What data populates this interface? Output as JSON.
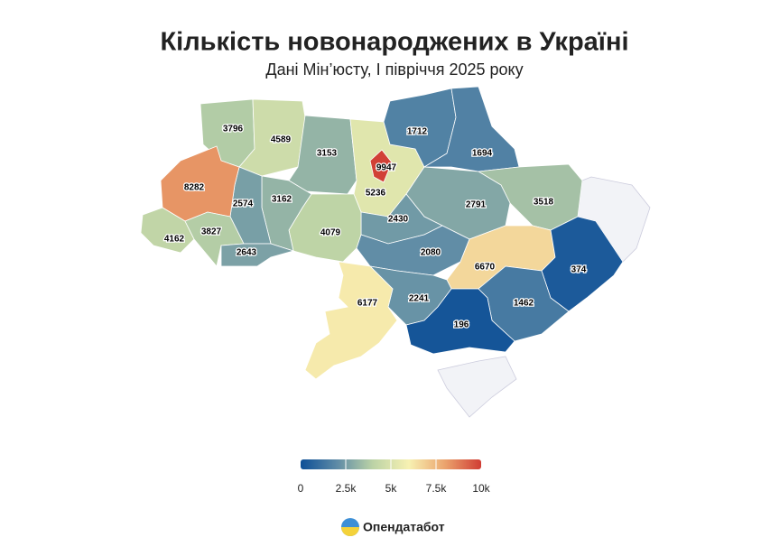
{
  "header": {
    "title": "Кількість новонароджених в Україні",
    "subtitle": "Дані Мін’юсту, І півріччя 2025 року"
  },
  "map": {
    "values": [
      3796,
      4589,
      3153,
      9947,
      5236,
      1712,
      1694,
      3518,
      2791,
      2430,
      4079,
      3162,
      2574,
      8282,
      4162,
      3827,
      2643,
      2080,
      6670,
      374,
      1462,
      2241,
      6177,
      196
    ]
  },
  "legend": {
    "range": [
      0,
      10000
    ],
    "ticks": [
      0,
      {
        "value": 2500,
        "label": "2.5k"
      },
      {
        "value": 5000,
        "label": "5k"
      },
      {
        "value": 7500,
        "label": "7.5k"
      },
      {
        "value": 10000,
        "label": "10k"
      }
    ],
    "colors": [
      "#0d4f97",
      "#5d8aa6",
      "#bcd3a6",
      "#f7f1b2",
      "#eba36d",
      "#d03d34"
    ]
  },
  "brand": "Опендатабот"
}
